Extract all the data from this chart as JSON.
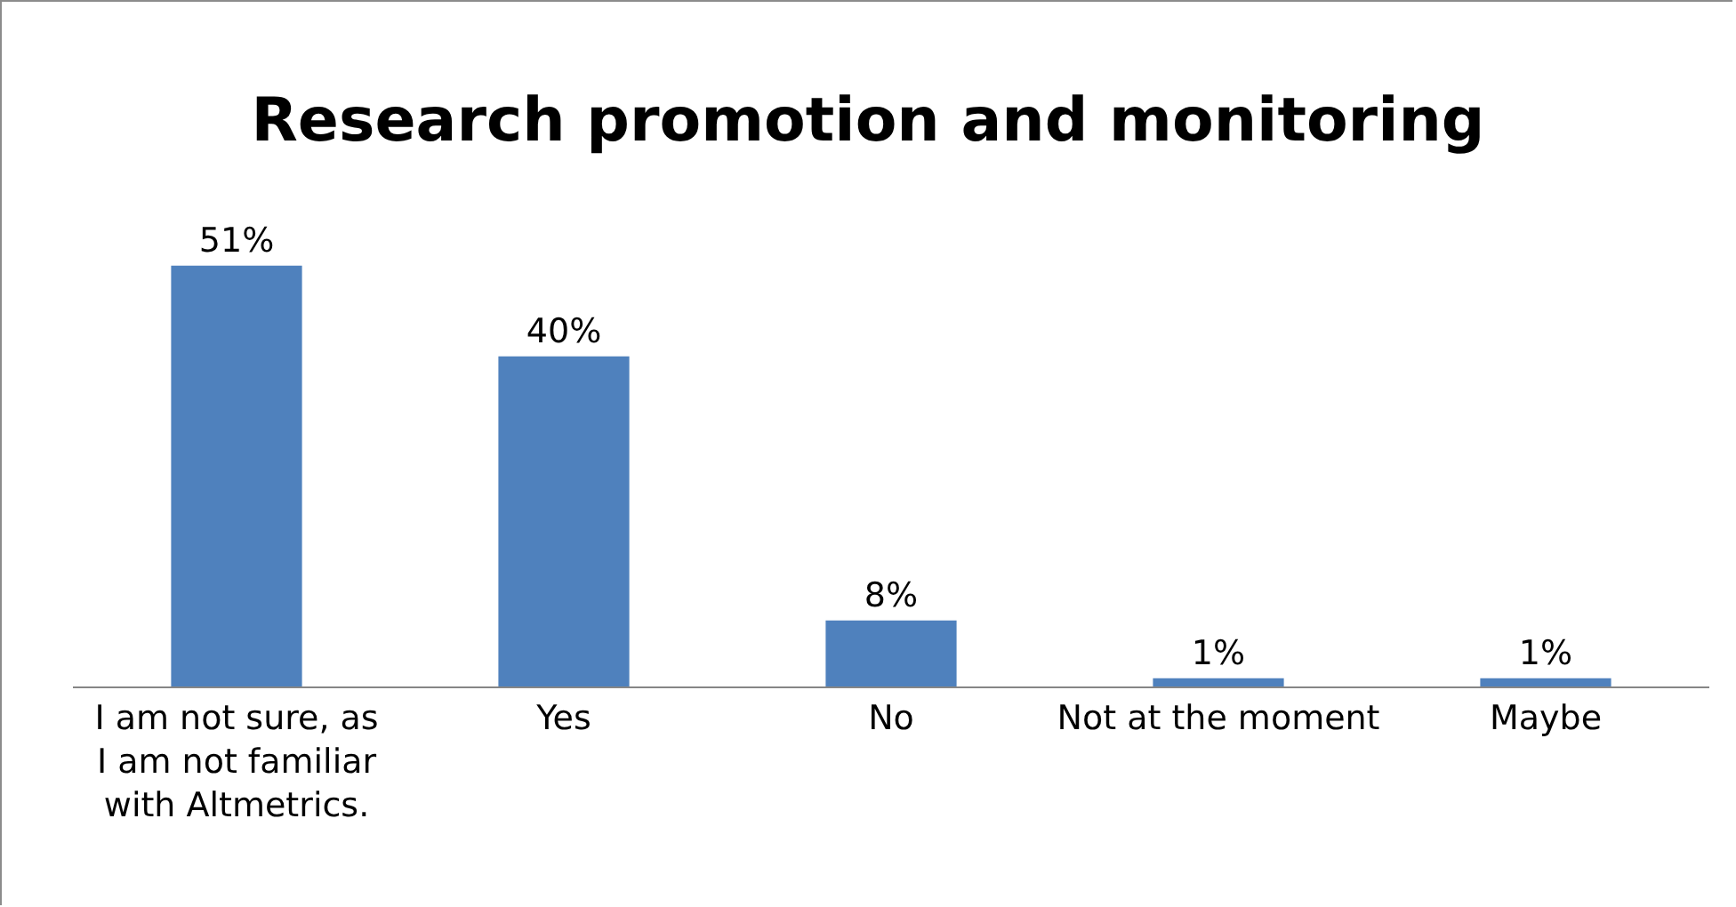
{
  "chart_data": {
    "type": "bar",
    "title": "Research promotion and monitoring",
    "categories": [
      "I am not sure, as I am not familiar with Altmetrics.",
      "Yes",
      "No",
      "Not at the moment",
      "Maybe"
    ],
    "values": [
      51,
      40,
      8,
      1,
      1
    ],
    "value_labels": [
      "51%",
      "40%",
      "8%",
      "1%",
      "1%"
    ],
    "color": "#4f81bd"
  }
}
